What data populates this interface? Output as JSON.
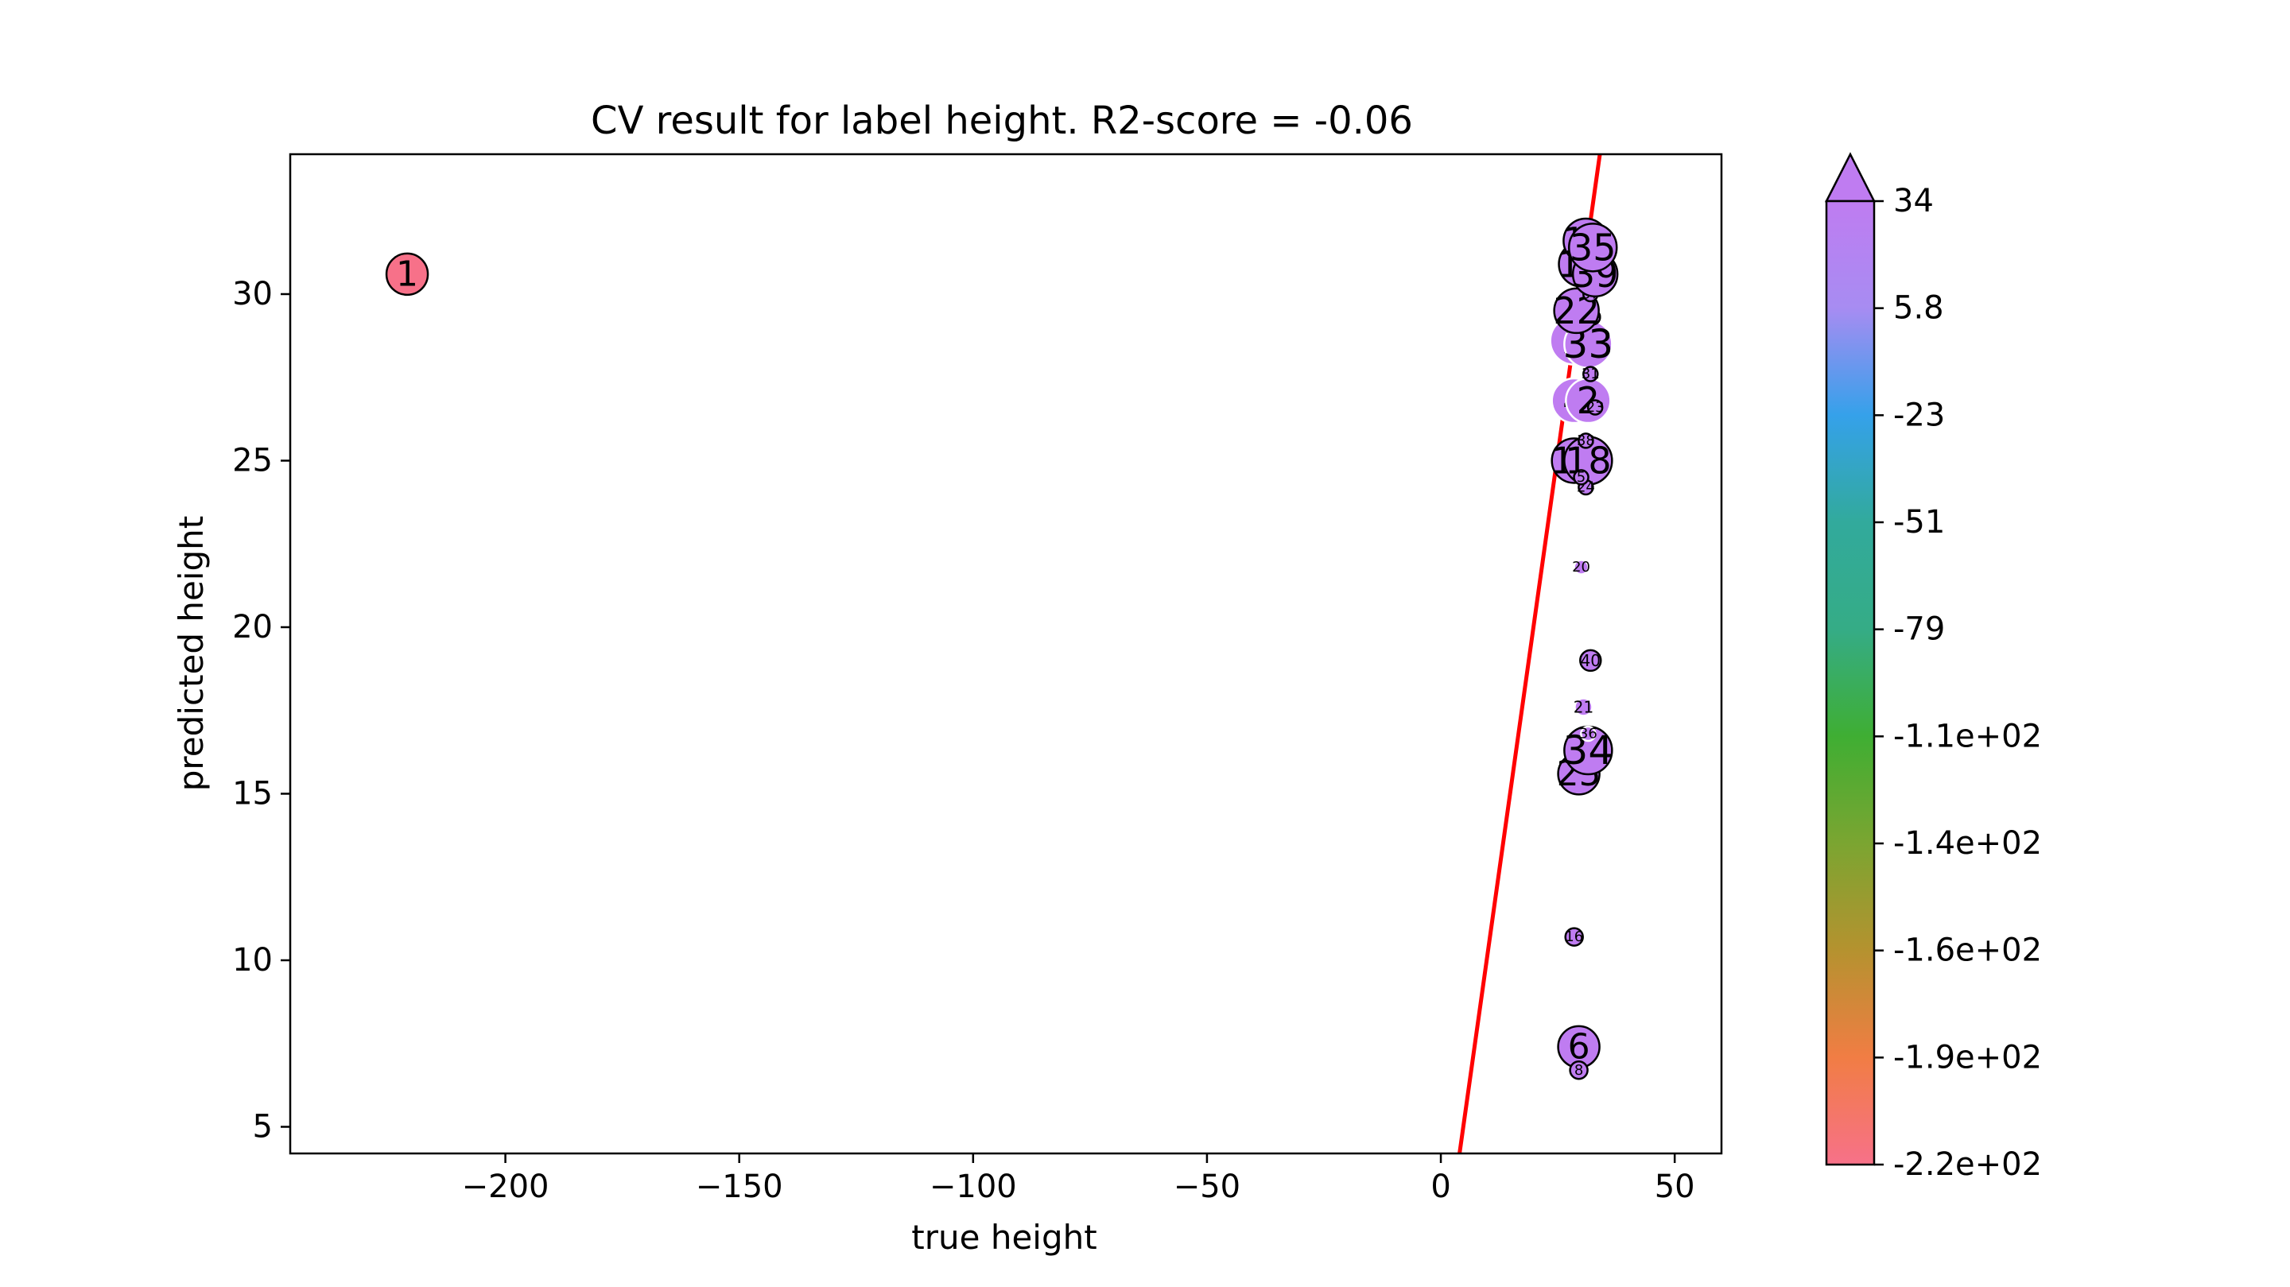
{
  "chart_data": {
    "type": "scatter",
    "title": "CV result for label height. R2-score = -0.06",
    "xlabel": "true height",
    "ylabel": "predicted height",
    "xlim": [
      -246,
      60
    ],
    "ylim": [
      4.2,
      34.2
    ],
    "xticks": [
      {
        "value": -200,
        "label": "−200"
      },
      {
        "value": -150,
        "label": "−150"
      },
      {
        "value": -100,
        "label": "−100"
      },
      {
        "value": -50,
        "label": "−50"
      },
      {
        "value": 0,
        "label": "0"
      },
      {
        "value": 50,
        "label": "50"
      }
    ],
    "yticks": [
      {
        "value": 5,
        "label": "5"
      },
      {
        "value": 10,
        "label": "10"
      },
      {
        "value": 15,
        "label": "15"
      },
      {
        "value": 20,
        "label": "20"
      },
      {
        "value": 25,
        "label": "25"
      },
      {
        "value": 30,
        "label": "30"
      }
    ],
    "fit_line": {
      "color": "#ff0000",
      "points": [
        [
          4.0,
          4.2
        ],
        [
          34.0,
          34.2
        ]
      ]
    },
    "colorbar": {
      "ticks": [
        "34",
        "5.8",
        "-23",
        "-51",
        "-79",
        "-1.1e+02",
        "-1.4e+02",
        "-1.6e+02",
        "-1.9e+02",
        "-2.2e+02"
      ],
      "colors_top_to_bottom": [
        "#bf7cf1",
        "#a78cf2",
        "#35a1ea",
        "#32aa9c",
        "#35ac86",
        "#3fae33",
        "#7ba531",
        "#b5922f",
        "#f17d44",
        "#f77189"
      ],
      "extend": "max"
    },
    "points": [
      {
        "label": "1",
        "x": -221,
        "y": 30.6,
        "r": 26,
        "fill": "#f77189",
        "stroke": "#000000",
        "fs": 44
      },
      {
        "label": "6",
        "x": 29.5,
        "y": 7.4,
        "r": 26,
        "fill": "#bf7cf1",
        "stroke": "#000000",
        "fs": 44
      },
      {
        "label": "8",
        "x": 29.5,
        "y": 6.7,
        "r": 11,
        "fill": "#bf7cf1",
        "stroke": "#000000",
        "fs": 18
      },
      {
        "label": "16",
        "x": 28.5,
        "y": 10.7,
        "r": 11,
        "fill": "#bf7cf1",
        "stroke": "#000000",
        "fs": 18
      },
      {
        "label": "25",
        "x": 29.5,
        "y": 15.6,
        "r": 26,
        "fill": "#bf7cf1",
        "stroke": "#000000",
        "fs": 44
      },
      {
        "label": "34",
        "x": 31.5,
        "y": 16.3,
        "r": 30,
        "fill": "#bf7cf1",
        "stroke": "#000000",
        "fs": 50
      },
      {
        "label": "36",
        "x": 31.5,
        "y": 16.8,
        "r": 9,
        "fill": "#bf7cf1",
        "stroke": "#ffffff",
        "fs": 18
      },
      {
        "label": "21",
        "x": 30.5,
        "y": 17.6,
        "r": 11,
        "fill": "#bf7cf1",
        "stroke": "#ffffff",
        "fs": 20
      },
      {
        "label": "40",
        "x": 32.0,
        "y": 19.0,
        "r": 13,
        "fill": "#bf7cf1",
        "stroke": "#000000",
        "fs": 20
      },
      {
        "label": "20",
        "x": 30.0,
        "y": 21.8,
        "r": 9,
        "fill": "#bf7cf1",
        "stroke": "#ffffff",
        "fs": 18
      },
      {
        "label": "14",
        "x": 28.5,
        "y": 25.0,
        "r": 28,
        "fill": "#bf7cf1",
        "stroke": "#000000",
        "fs": 46
      },
      {
        "label": "18",
        "x": 31.5,
        "y": 25.0,
        "r": 30,
        "fill": "#bf7cf1",
        "stroke": "#000000",
        "fs": 46
      },
      {
        "label": "38",
        "x": 31.0,
        "y": 25.6,
        "r": 9,
        "fill": "#bf7cf1",
        "stroke": "#000000",
        "fs": 18
      },
      {
        "label": "24",
        "x": 31.0,
        "y": 24.2,
        "r": 9,
        "fill": "#bf7cf1",
        "stroke": "#000000",
        "fs": 18
      },
      {
        "label": "5",
        "x": 30.0,
        "y": 24.5,
        "r": 9,
        "fill": "#bf7cf1",
        "stroke": "#000000",
        "fs": 18
      },
      {
        "label": "4",
        "x": 28.5,
        "y": 26.8,
        "r": 28,
        "fill": "#bf7cf1",
        "stroke": "#ffffff",
        "fs": 46
      },
      {
        "label": "2",
        "x": 31.5,
        "y": 26.8,
        "r": 28,
        "fill": "#bf7cf1",
        "stroke": "#ffffff",
        "fs": 46
      },
      {
        "label": "23",
        "x": 33.0,
        "y": 26.6,
        "r": 9,
        "fill": "#bf7cf1",
        "stroke": "#000000",
        "fs": 18
      },
      {
        "label": "3",
        "x": 28.5,
        "y": 28.6,
        "r": 30,
        "fill": "#bf7cf1",
        "stroke": "#ffffff",
        "fs": 50
      },
      {
        "label": "33",
        "x": 31.5,
        "y": 28.5,
        "r": 30,
        "fill": "#bf7cf1",
        "stroke": "#ffffff",
        "fs": 50
      },
      {
        "label": "31",
        "x": 32.0,
        "y": 27.6,
        "r": 9,
        "fill": "#bf7cf1",
        "stroke": "#000000",
        "fs": 18
      },
      {
        "label": "19",
        "x": 32.5,
        "y": 29.3,
        "r": 9,
        "fill": "#bf7cf1",
        "stroke": "#000000",
        "fs": 18
      },
      {
        "label": "22",
        "x": 29.0,
        "y": 29.5,
        "r": 28,
        "fill": "#bf7cf1",
        "stroke": "#000000",
        "fs": 46
      },
      {
        "label": "37",
        "x": 32.0,
        "y": 30.0,
        "r": 9,
        "fill": "#bf7cf1",
        "stroke": "#000000",
        "fs": 18
      },
      {
        "label": "10",
        "x": 30.0,
        "y": 30.9,
        "r": 28,
        "fill": "#bf7cf1",
        "stroke": "#000000",
        "fs": 46
      },
      {
        "label": "39",
        "x": 33.0,
        "y": 30.6,
        "r": 28,
        "fill": "#bf7cf1",
        "stroke": "#000000",
        "fs": 46
      },
      {
        "label": "11",
        "x": 31.0,
        "y": 31.6,
        "r": 28,
        "fill": "#bf7cf1",
        "stroke": "#000000",
        "fs": 46
      },
      {
        "label": "35",
        "x": 32.5,
        "y": 31.4,
        "r": 30,
        "fill": "#bf7cf1",
        "stroke": "#000000",
        "fs": 46
      }
    ]
  }
}
